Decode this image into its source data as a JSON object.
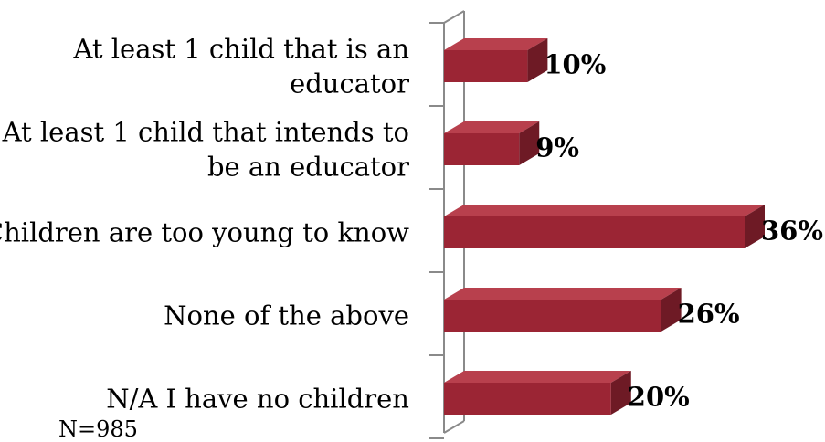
{
  "chart_data": {
    "type": "bar",
    "orientation": "horizontal",
    "style": "3d",
    "categories": [
      [
        "At least 1 child that is an",
        "educator"
      ],
      [
        "At least 1 child that intends to",
        "be an educator"
      ],
      [
        "Children are too young to know"
      ],
      [
        "None of the above"
      ],
      [
        "N/A I have no children"
      ]
    ],
    "values": [
      10,
      9,
      36,
      26,
      20
    ],
    "value_labels": [
      "10%",
      "9%",
      "36%",
      "26%",
      "20%"
    ],
    "xlim": [
      0,
      36
    ],
    "grid": false,
    "legend": "none",
    "colors": {
      "bar_front": "#9b2534",
      "bar_top": "#b8404d",
      "bar_side": "#6e1a25",
      "wall": "#8a8a8a"
    }
  },
  "note": "N=985"
}
